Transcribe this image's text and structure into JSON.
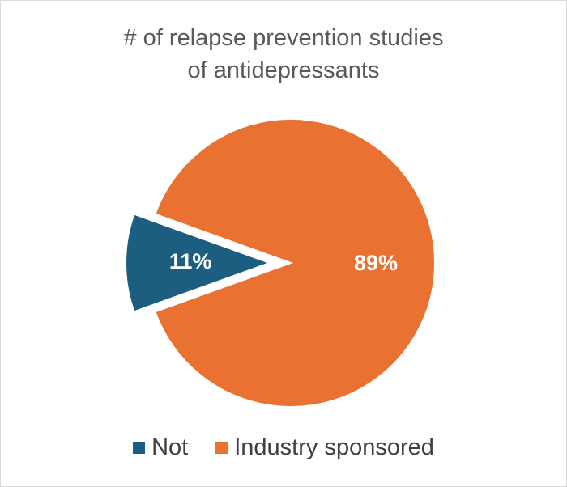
{
  "chart_data": {
    "type": "pie",
    "title_lines": [
      "# of relapse prevention studies",
      "of antidepressants"
    ],
    "slices": [
      {
        "name": "Not",
        "value": 11,
        "label": "11%",
        "color": "#1b5e7f",
        "exploded": true
      },
      {
        "name": "Industry sponsored",
        "value": 89,
        "label": "89%",
        "color": "#e97132",
        "exploded": false
      }
    ],
    "legend_position": "bottom"
  }
}
